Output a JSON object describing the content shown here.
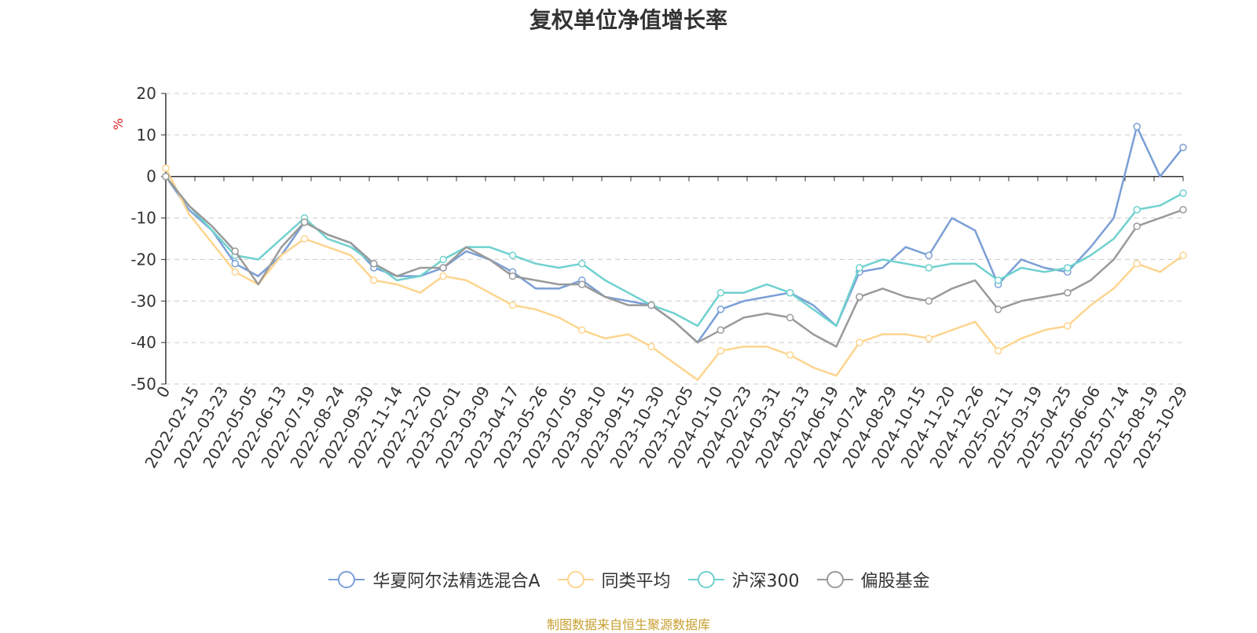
{
  "title": "复权单位净值增长率",
  "source_note": "制图数据来自恒生聚源数据库",
  "chart_data": {
    "type": "line",
    "title": "复权单位净值增长率",
    "ylabel": "%",
    "ylim": [
      -50,
      20
    ],
    "yticks": [
      20,
      10,
      0,
      -10,
      -20,
      -30,
      -40,
      -50
    ],
    "grid": true,
    "legend_position": "bottom",
    "x_tick_labels": [
      "0",
      "2022-02-15",
      "2022-03-23",
      "2022-05-05",
      "2022-06-13",
      "2022-07-19",
      "2022-08-24",
      "2022-09-30",
      "2022-11-14",
      "2022-12-20",
      "2023-02-01",
      "2023-03-09",
      "2023-04-17",
      "2023-05-26",
      "2023-07-05",
      "2023-08-10",
      "2023-09-15",
      "2023-10-30",
      "2023-12-05",
      "2024-01-10",
      "2024-02-23",
      "2024-03-31",
      "2024-05-13",
      "2024-06-19",
      "2024-07-24",
      "2024-08-29",
      "2024-10-15",
      "2024-11-20",
      "2024-12-26",
      "2025-02-11",
      "2025-03-19",
      "2025-04-25",
      "2025-06-06",
      "2025-07-14",
      "2025-08-19",
      "2025-10-29"
    ],
    "series": [
      {
        "name": "华夏阿尔法精选混合A",
        "color": "#7b9fd6",
        "values": [
          0,
          -8,
          -13,
          -21,
          -24,
          -19,
          -11,
          -14,
          -16,
          -22,
          -24,
          -24,
          -22,
          -18,
          -20,
          -23,
          -27,
          -27,
          -25,
          -29,
          -30,
          -31,
          -35,
          -40,
          -32,
          -30,
          -29,
          -28,
          -31,
          -36,
          -23,
          -22,
          -17,
          -19,
          -10,
          -13,
          -26,
          -20,
          -22,
          -23,
          -17,
          -10,
          12,
          0,
          7
        ]
      },
      {
        "name": "同类平均",
        "color": "#fdd58f",
        "values": [
          2,
          -9,
          -16,
          -23,
          -26,
          -19,
          -15,
          -17,
          -19,
          -25,
          -26,
          -28,
          -24,
          -25,
          -28,
          -31,
          -32,
          -34,
          -37,
          -39,
          -38,
          -41,
          -45,
          -49,
          -42,
          -41,
          -41,
          -43,
          -46,
          -48,
          -40,
          -38,
          -38,
          -39,
          -37,
          -35,
          -42,
          -39,
          -37,
          -36,
          -31,
          -27,
          -21,
          -23,
          -19
        ]
      },
      {
        "name": "沪深300",
        "color": "#6fd1cf",
        "values": [
          0,
          -7,
          -13,
          -19,
          -20,
          -15,
          -10,
          -15,
          -17,
          -21,
          -25,
          -24,
          -20,
          -17,
          -17,
          -19,
          -21,
          -22,
          -21,
          -25,
          -28,
          -31,
          -33,
          -36,
          -28,
          -28,
          -26,
          -28,
          -32,
          -36,
          -22,
          -20,
          -21,
          -22,
          -21,
          -21,
          -25,
          -22,
          -23,
          -22,
          -19,
          -15,
          -8,
          -7,
          -4
        ]
      },
      {
        "name": "偏股基金",
        "color": "#9a9a9a",
        "values": [
          0,
          -7,
          -12,
          -18,
          -26,
          -17,
          -11,
          -14,
          -16,
          -21,
          -24,
          -22,
          -22,
          -17,
          -20,
          -24,
          -25,
          -26,
          -26,
          -29,
          -31,
          -31,
          -35,
          -40,
          -37,
          -34,
          -33,
          -34,
          -38,
          -41,
          -29,
          -27,
          -29,
          -30,
          -27,
          -25,
          -32,
          -30,
          -29,
          -28,
          -25,
          -20,
          -12,
          -10,
          -8
        ]
      }
    ]
  }
}
